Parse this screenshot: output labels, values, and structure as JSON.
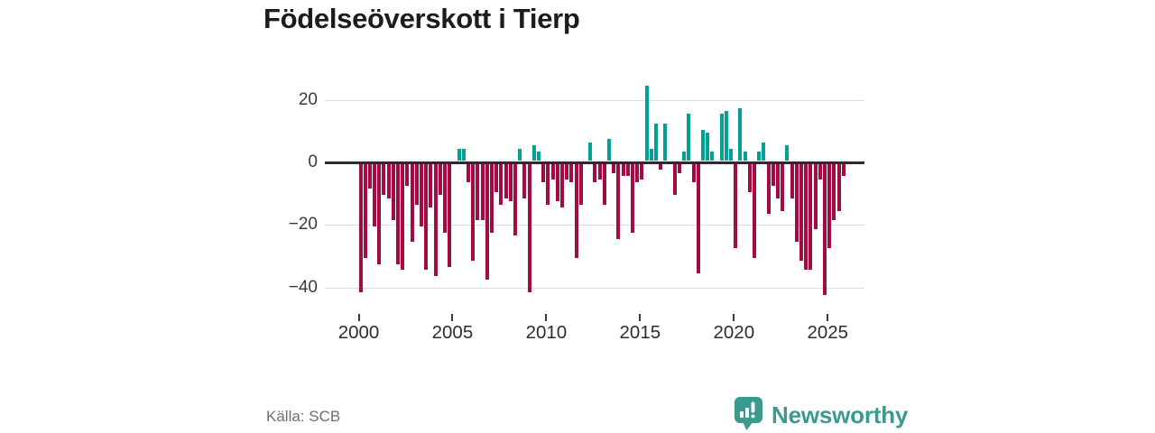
{
  "title": "Födelseöverskott i Tierp",
  "source": "Källa: SCB",
  "logo": {
    "text": "Newsworthy"
  },
  "colors": {
    "positive": "#00a296",
    "negative": "#a50b43",
    "logo": "#3a9a8d",
    "axis_line": "#2b2b2b",
    "gridline": "#dedede",
    "title_text": "#1c1c1c",
    "tick_text": "#3a3a3a",
    "source_text": "#6e6e6e"
  },
  "chart_data": {
    "type": "bar",
    "title": "Födelseöverskott i Tierp",
    "frequency": "quarterly",
    "start_year": 2000,
    "end_year": 2025,
    "xlabel": "",
    "ylabel": "",
    "ylim": [
      -45,
      27
    ],
    "grid": "horizontal",
    "legend": "none",
    "y_ticks": [
      20,
      0,
      -20,
      -40
    ],
    "y_tick_labels": [
      "20",
      "0",
      "−20",
      "−40"
    ],
    "x_ticks_years": [
      2000,
      2005,
      2010,
      2015,
      2020,
      2025
    ],
    "x_tick_labels": [
      "2000",
      "2005",
      "2010",
      "2015",
      "2020",
      "2025"
    ],
    "values": [
      -41,
      -30,
      -8,
      -20,
      -32,
      -10,
      -11,
      -18,
      -32,
      -34,
      -7,
      -25,
      -13,
      -20,
      -34,
      -14,
      -36,
      -10,
      -22,
      -33,
      0,
      4,
      4,
      -6,
      -31,
      -18,
      -18,
      -37,
      -22,
      -9,
      -13,
      -11,
      -12,
      -23,
      4,
      -11,
      -41,
      5,
      3,
      -6,
      -13,
      -5,
      -12,
      -14,
      -5,
      -6,
      -30,
      -13,
      0,
      6,
      -6,
      -5,
      -13,
      7,
      -3,
      -24,
      -4,
      -4,
      -22,
      -6,
      -5,
      24,
      4,
      12,
      -2,
      12,
      0,
      -10,
      -3,
      3,
      15,
      -6,
      -35,
      10,
      9,
      3,
      0,
      15,
      16,
      4,
      -27,
      17,
      3,
      -9,
      -30,
      3,
      6,
      -16,
      -7,
      -11,
      -15,
      5,
      -11,
      -25,
      -31,
      -34,
      -34,
      -21,
      -5,
      -42,
      -27,
      -18,
      -15,
      -4
    ]
  }
}
